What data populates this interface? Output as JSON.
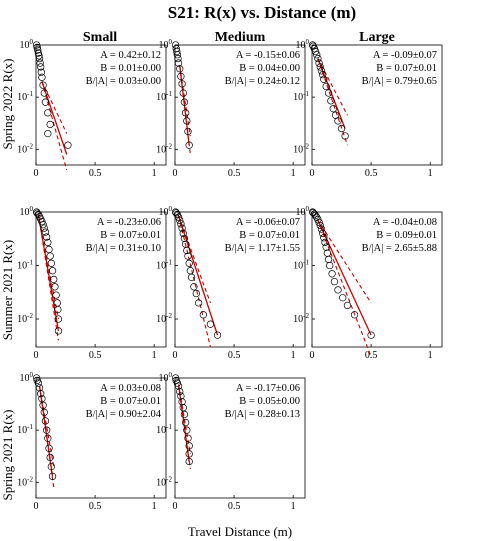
{
  "figure": {
    "title": "S21: R(x) vs. Distance (m)",
    "column_titles": [
      "Small",
      "Medium",
      "Large"
    ],
    "row_labels": [
      "Spring 2022 R(x)",
      "Summer 2021 R(x)",
      "Spring 2021 R(x)"
    ],
    "xlabel": "Travel Distance (m)",
    "colors": {
      "data_marker": "#000000",
      "fit_line": "#cc0000",
      "axes": "#000000"
    }
  },
  "chart_data": [
    {
      "type": "scatter",
      "row": 0,
      "col": 0,
      "xlim": [
        0,
        1.1
      ],
      "ylim": [
        0.005,
        1
      ],
      "yscale": "log",
      "x_ticks": [
        "0",
        "0.5",
        "1"
      ],
      "y_ticks": [
        "10^0",
        "10^-1",
        "10^-2"
      ],
      "stats": [
        "A = 0.42±0.12",
        "B = 0.01±0.00",
        "B/|A| = 0.03±0.00"
      ],
      "series": [
        {
          "values": [
            [
              0.005,
              1.0
            ],
            [
              0.01,
              0.9
            ],
            [
              0.015,
              0.8
            ],
            [
              0.02,
              0.7
            ],
            [
              0.025,
              0.62
            ],
            [
              0.03,
              0.55
            ],
            [
              0.035,
              0.45
            ],
            [
              0.04,
              0.38
            ],
            [
              0.045,
              0.3
            ],
            [
              0.05,
              0.24
            ],
            [
              0.06,
              0.17
            ],
            [
              0.07,
              0.12
            ],
            [
              0.08,
              0.08
            ],
            [
              0.1,
              0.05
            ],
            [
              0.12,
              0.03
            ],
            [
              0.1,
              0.02
            ],
            [
              0.27,
              0.012
            ]
          ]
        }
      ],
      "fit": {
        "start": 0.05,
        "solid_end": 0.26,
        "dashed_end": 0.26,
        "y_start": 0.2,
        "y_end": 0.008,
        "y_upper": 0.02,
        "y_lower": 0.004
      }
    },
    {
      "type": "scatter",
      "row": 0,
      "col": 1,
      "xlim": [
        0,
        1.1
      ],
      "ylim": [
        0.005,
        1
      ],
      "yscale": "log",
      "x_ticks": [
        "0",
        "0.5",
        "1"
      ],
      "y_ticks": [
        "10^0",
        "10^-1",
        "10^-2"
      ],
      "stats": [
        "A = -0.15±0.06",
        "B = 0.04±0.00",
        "B/|A| = 0.24±0.12"
      ],
      "series": [
        {
          "values": [
            [
              0.005,
              1.0
            ],
            [
              0.01,
              0.85
            ],
            [
              0.015,
              0.75
            ],
            [
              0.02,
              0.65
            ],
            [
              0.025,
              0.55
            ],
            [
              0.03,
              0.45
            ],
            [
              0.04,
              0.35
            ],
            [
              0.05,
              0.25
            ],
            [
              0.06,
              0.18
            ],
            [
              0.07,
              0.12
            ],
            [
              0.08,
              0.08
            ],
            [
              0.09,
              0.05
            ],
            [
              0.1,
              0.035
            ],
            [
              0.11,
              0.022
            ],
            [
              0.12,
              0.012
            ]
          ]
        }
      ],
      "fit": {
        "start": 0.04,
        "solid_end": 0.12,
        "dashed_end": 0.13,
        "y_start": 0.4,
        "y_end": 0.012,
        "y_upper": 0.018,
        "y_lower": 0.008
      }
    },
    {
      "type": "scatter",
      "row": 0,
      "col": 2,
      "xlim": [
        0,
        1.1
      ],
      "ylim": [
        0.005,
        1
      ],
      "yscale": "log",
      "x_ticks": [
        "0",
        "0.5",
        "1"
      ],
      "y_ticks": [
        "10^0",
        "10^-1",
        "10^-2"
      ],
      "stats": [
        "A = -0.09±0.07",
        "B = 0.07±0.01",
        "B/|A| = 0.79±0.65"
      ],
      "series": [
        {
          "values": [
            [
              0.005,
              1.0
            ],
            [
              0.01,
              0.95
            ],
            [
              0.02,
              0.85
            ],
            [
              0.03,
              0.75
            ],
            [
              0.04,
              0.65
            ],
            [
              0.05,
              0.55
            ],
            [
              0.06,
              0.45
            ],
            [
              0.07,
              0.38
            ],
            [
              0.08,
              0.32
            ],
            [
              0.09,
              0.27
            ],
            [
              0.1,
              0.22
            ],
            [
              0.12,
              0.16
            ],
            [
              0.14,
              0.12
            ],
            [
              0.16,
              0.085
            ],
            [
              0.18,
              0.06
            ],
            [
              0.2,
              0.045
            ],
            [
              0.22,
              0.035
            ],
            [
              0.25,
              0.025
            ],
            [
              0.28,
              0.018
            ]
          ]
        }
      ],
      "fit": {
        "start": 0.05,
        "solid_end": 0.28,
        "dashed_end": 0.3,
        "y_start": 0.55,
        "y_end": 0.025,
        "y_upper": 0.045,
        "y_lower": 0.012
      }
    },
    {
      "type": "scatter",
      "row": 1,
      "col": 0,
      "xlim": [
        0,
        1.1
      ],
      "ylim": [
        0.003,
        1
      ],
      "yscale": "log",
      "x_ticks": [
        "0",
        "0.5",
        "1"
      ],
      "y_ticks": [
        "10^0",
        "10^-1",
        "10^-2"
      ],
      "stats": [
        "A = -0.23±0.06",
        "B = 0.07±0.01",
        "B/|A| = 0.31±0.10"
      ],
      "series": [
        {
          "values": [
            [
              0.005,
              1.0
            ],
            [
              0.01,
              0.95
            ],
            [
              0.02,
              0.9
            ],
            [
              0.03,
              0.82
            ],
            [
              0.04,
              0.74
            ],
            [
              0.05,
              0.66
            ],
            [
              0.06,
              0.58
            ],
            [
              0.07,
              0.5
            ],
            [
              0.08,
              0.42
            ],
            [
              0.09,
              0.34
            ],
            [
              0.1,
              0.27
            ],
            [
              0.11,
              0.2
            ],
            [
              0.12,
              0.15
            ],
            [
              0.13,
              0.11
            ],
            [
              0.14,
              0.08
            ],
            [
              0.15,
              0.055
            ],
            [
              0.16,
              0.04
            ],
            [
              0.17,
              0.028
            ],
            [
              0.18,
              0.02
            ],
            [
              0.185,
              0.015
            ],
            [
              0.19,
              0.01
            ],
            [
              0.19,
              0.006
            ]
          ]
        }
      ],
      "fit": {
        "start": 0.02,
        "solid_end": 0.19,
        "dashed_end": 0.19,
        "y_start": 0.9,
        "y_end": 0.006,
        "y_upper": 0.01,
        "y_lower": 0.004
      }
    },
    {
      "type": "scatter",
      "row": 1,
      "col": 1,
      "xlim": [
        0,
        1.1
      ],
      "ylim": [
        0.003,
        1
      ],
      "yscale": "log",
      "x_ticks": [
        "0",
        "0.5",
        "1"
      ],
      "y_ticks": [
        "10^0",
        "10^-1",
        "10^-2"
      ],
      "stats": [
        "A = -0.06±0.07",
        "B = 0.07±0.01",
        "B/|A| = 1.17±1.55"
      ],
      "series": [
        {
          "values": [
            [
              0.005,
              1.0
            ],
            [
              0.01,
              0.96
            ],
            [
              0.02,
              0.9
            ],
            [
              0.03,
              0.8
            ],
            [
              0.04,
              0.7
            ],
            [
              0.05,
              0.6
            ],
            [
              0.06,
              0.5
            ],
            [
              0.07,
              0.4
            ],
            [
              0.08,
              0.32
            ],
            [
              0.09,
              0.25
            ],
            [
              0.1,
              0.19
            ],
            [
              0.11,
              0.15
            ],
            [
              0.12,
              0.11
            ],
            [
              0.13,
              0.08
            ],
            [
              0.14,
              0.06
            ],
            [
              0.16,
              0.04
            ],
            [
              0.18,
              0.03
            ],
            [
              0.2,
              0.02
            ],
            [
              0.24,
              0.012
            ],
            [
              0.3,
              0.008
            ],
            [
              0.36,
              0.005
            ]
          ]
        }
      ],
      "fit": {
        "start": 0.03,
        "solid_end": 0.36,
        "dashed_end": 0.3,
        "y_start": 0.85,
        "y_end": 0.005,
        "y_upper": 0.02,
        "y_lower": 0.003
      }
    },
    {
      "type": "scatter",
      "row": 1,
      "col": 2,
      "xlim": [
        0,
        1.1
      ],
      "ylim": [
        0.003,
        1
      ],
      "yscale": "log",
      "x_ticks": [
        "0",
        "0.5",
        "1"
      ],
      "y_ticks": [
        "10^0",
        "10^-1",
        "10^-2"
      ],
      "stats": [
        "A = -0.04±0.08",
        "B = 0.09±0.01",
        "B/|A| = 2.65±5.88"
      ],
      "series": [
        {
          "values": [
            [
              0.005,
              1.0
            ],
            [
              0.01,
              0.97
            ],
            [
              0.02,
              0.92
            ],
            [
              0.03,
              0.86
            ],
            [
              0.04,
              0.8
            ],
            [
              0.05,
              0.72
            ],
            [
              0.06,
              0.64
            ],
            [
              0.07,
              0.56
            ],
            [
              0.08,
              0.48
            ],
            [
              0.09,
              0.4
            ],
            [
              0.1,
              0.33
            ],
            [
              0.11,
              0.27
            ],
            [
              0.12,
              0.22
            ],
            [
              0.13,
              0.17
            ],
            [
              0.14,
              0.13
            ],
            [
              0.15,
              0.1
            ],
            [
              0.17,
              0.07
            ],
            [
              0.19,
              0.05
            ],
            [
              0.22,
              0.035
            ],
            [
              0.26,
              0.025
            ],
            [
              0.3,
              0.018
            ],
            [
              0.36,
              0.012
            ],
            [
              0.5,
              0.005
            ]
          ]
        }
      ],
      "fit": {
        "start": 0.05,
        "solid_end": 0.5,
        "dashed_end": 0.5,
        "y_start": 0.7,
        "y_end": 0.005,
        "y_upper": 0.02,
        "y_lower": 0.002
      }
    },
    {
      "type": "scatter",
      "row": 2,
      "col": 0,
      "xlim": [
        0,
        1.1
      ],
      "ylim": [
        0.005,
        1
      ],
      "yscale": "log",
      "x_ticks": [
        "0",
        "0.5",
        "1"
      ],
      "y_ticks": [
        "10^0",
        "10^-1",
        "10^-2"
      ],
      "stats": [
        "A = 0.03±0.08",
        "B = 0.07±0.01",
        "B/|A| = 0.90±2.04"
      ],
      "series": [
        {
          "values": [
            [
              0.005,
              1.0
            ],
            [
              0.01,
              0.9
            ],
            [
              0.02,
              0.8
            ],
            [
              0.03,
              0.65
            ],
            [
              0.04,
              0.5
            ],
            [
              0.05,
              0.4
            ],
            [
              0.06,
              0.3
            ],
            [
              0.07,
              0.22
            ],
            [
              0.08,
              0.15
            ],
            [
              0.09,
              0.1
            ],
            [
              0.1,
              0.07
            ],
            [
              0.11,
              0.045
            ],
            [
              0.12,
              0.03
            ],
            [
              0.13,
              0.02
            ],
            [
              0.14,
              0.013
            ]
          ]
        }
      ],
      "fit": {
        "start": 0.03,
        "solid_end": 0.14,
        "dashed_end": 0.15,
        "y_start": 0.7,
        "y_end": 0.013,
        "y_upper": 0.02,
        "y_lower": 0.008
      }
    },
    {
      "type": "scatter",
      "row": 2,
      "col": 1,
      "xlim": [
        0,
        1.1
      ],
      "ylim": [
        0.005,
        1
      ],
      "yscale": "log",
      "x_ticks": [
        "0",
        "0.5",
        "1"
      ],
      "y_ticks": [
        "10^0",
        "10^-1",
        "10^-2"
      ],
      "stats": [
        "A = -0.17±0.06",
        "B = 0.05±0.00",
        "B/|A| = 0.28±0.13"
      ],
      "series": [
        {
          "values": [
            [
              0.005,
              1.0
            ],
            [
              0.01,
              0.9
            ],
            [
              0.02,
              0.8
            ],
            [
              0.03,
              0.7
            ],
            [
              0.04,
              0.55
            ],
            [
              0.05,
              0.45
            ],
            [
              0.06,
              0.35
            ],
            [
              0.07,
              0.27
            ],
            [
              0.08,
              0.2
            ],
            [
              0.09,
              0.14
            ],
            [
              0.1,
              0.1
            ],
            [
              0.11,
              0.07
            ],
            [
              0.12,
              0.05
            ],
            [
              0.12,
              0.035
            ],
            [
              0.12,
              0.025
            ]
          ]
        }
      ],
      "fit": {
        "start": 0.03,
        "solid_end": 0.12,
        "dashed_end": 0.13,
        "y_start": 0.75,
        "y_end": 0.025,
        "y_upper": 0.035,
        "y_lower": 0.018
      }
    }
  ]
}
